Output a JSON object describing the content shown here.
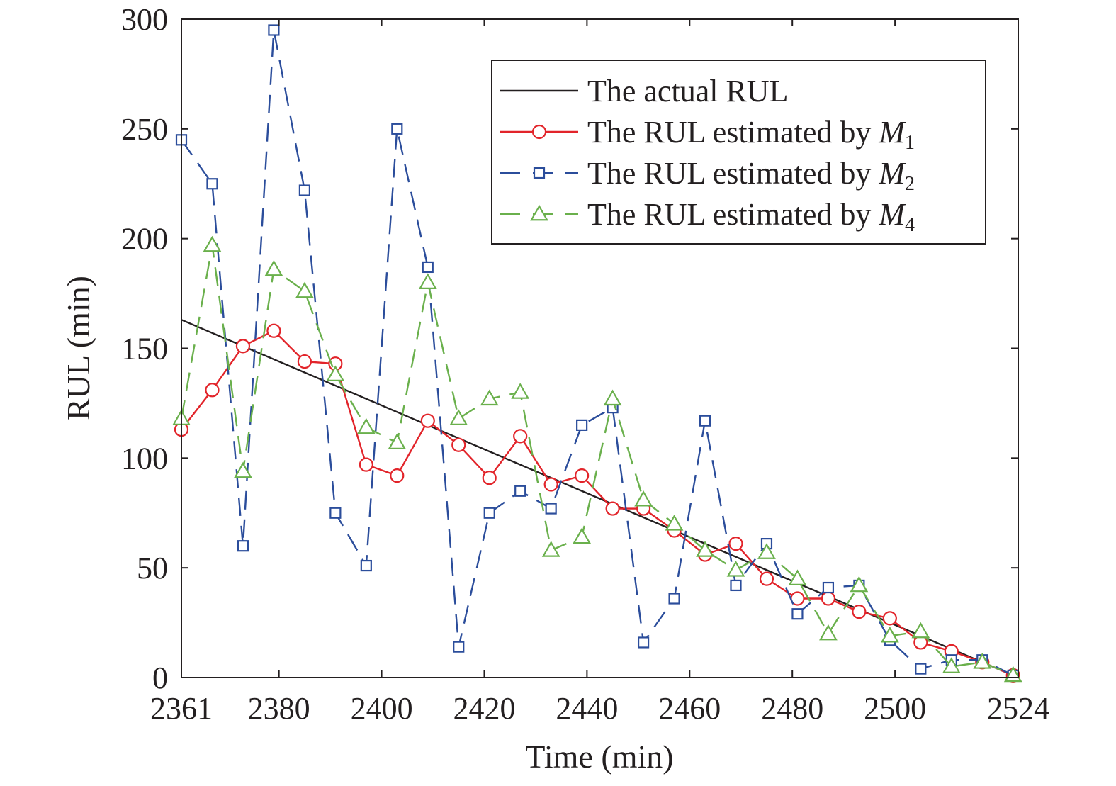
{
  "chart_data": {
    "type": "line",
    "title": "",
    "xlabel": "Time (min)",
    "ylabel": "RUL (min)",
    "xlim": [
      2361,
      2524
    ],
    "ylim": [
      0,
      300
    ],
    "xticks": [
      2361,
      2380,
      2400,
      2420,
      2440,
      2460,
      2480,
      2500,
      2524
    ],
    "yticks": [
      0,
      50,
      100,
      150,
      200,
      250,
      300
    ],
    "grid": false,
    "legend_position": "top-right",
    "x": [
      2361,
      2367,
      2373,
      2379,
      2385,
      2391,
      2397,
      2403,
      2409,
      2415,
      2421,
      2427,
      2433,
      2439,
      2445,
      2451,
      2457,
      2463,
      2469,
      2475,
      2481,
      2487,
      2493,
      2499,
      2505,
      2511,
      2517,
      2523
    ],
    "series": [
      {
        "name": "The actual RUL",
        "label_main": "The actual RUL",
        "label_sub": "",
        "color": "#231f20",
        "marker": "none",
        "dash": "solid",
        "x": [
          2361,
          2524
        ],
        "values": [
          163,
          0
        ]
      },
      {
        "name": "The RUL estimated by M1",
        "label_main": "The RUL estimated by M",
        "label_sub": "1",
        "color": "#e2242a",
        "marker": "circle",
        "dash": "solid",
        "values": [
          113,
          131,
          151,
          158,
          144,
          143,
          97,
          92,
          117,
          106,
          91,
          110,
          88,
          92,
          77,
          77,
          67,
          56,
          61,
          45,
          36,
          36,
          30,
          27,
          16,
          12,
          7,
          1
        ]
      },
      {
        "name": "The RUL estimated by M2",
        "label_main": "The RUL estimated by M",
        "label_sub": "2",
        "color": "#2b4d9b",
        "marker": "square",
        "dash": "dashed",
        "values": [
          245,
          225,
          60,
          295,
          222,
          75,
          51,
          250,
          187,
          14,
          75,
          85,
          77,
          115,
          123,
          16,
          36,
          117,
          42,
          61,
          29,
          41,
          42,
          17,
          4,
          8,
          8,
          1
        ]
      },
      {
        "name": "The RUL estimated by M4",
        "label_main": "The RUL estimated by M",
        "label_sub": "4",
        "color": "#6ab04c",
        "marker": "triangle",
        "dash": "dashed",
        "values": [
          118,
          197,
          94,
          186,
          176,
          138,
          114,
          107,
          180,
          118,
          127,
          130,
          58,
          64,
          127,
          81,
          70,
          58,
          49,
          57,
          45,
          20,
          42,
          19,
          21,
          5,
          7,
          1
        ]
      }
    ]
  }
}
